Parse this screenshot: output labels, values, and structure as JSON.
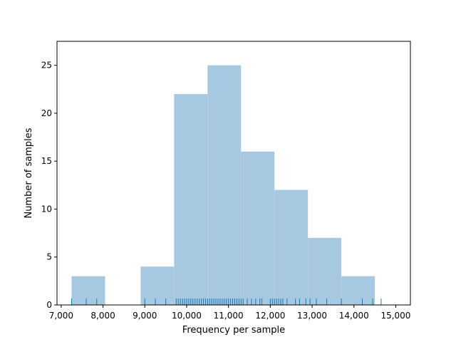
{
  "chart_data": {
    "type": "histogram",
    "title": "",
    "xlabel": "Frequency per sample",
    "ylabel": "Number of samples",
    "xlim": [
      6900,
      15350
    ],
    "ylim": [
      0,
      27.5
    ],
    "x_ticks": [
      7000,
      8000,
      9000,
      10000,
      11000,
      12000,
      13000,
      14000,
      15000
    ],
    "x_tick_labels": [
      "7,000",
      "8,000",
      "9,000",
      "10,000",
      "11,000",
      "12,000",
      "13,000",
      "14,000",
      "15,000"
    ],
    "y_ticks": [
      0,
      5,
      10,
      15,
      20,
      25
    ],
    "y_tick_labels": [
      "0",
      "5",
      "10",
      "15",
      "20",
      "25"
    ],
    "bins": [
      {
        "start": 7250,
        "end": 8050,
        "count": 3
      },
      {
        "start": 8050,
        "end": 8900,
        "count": 0
      },
      {
        "start": 8900,
        "end": 9700,
        "count": 4
      },
      {
        "start": 9700,
        "end": 10500,
        "count": 22
      },
      {
        "start": 10500,
        "end": 11300,
        "count": 25
      },
      {
        "start": 11300,
        "end": 12100,
        "count": 16
      },
      {
        "start": 12100,
        "end": 12900,
        "count": 12
      },
      {
        "start": 12900,
        "end": 13700,
        "count": 7
      },
      {
        "start": 13700,
        "end": 14500,
        "count": 3
      }
    ],
    "rug": [
      7250,
      7600,
      7850,
      9000,
      9250,
      9500,
      9750,
      9800,
      9850,
      9900,
      9950,
      10000,
      10050,
      10100,
      10150,
      10200,
      10250,
      10300,
      10350,
      10400,
      10450,
      10500,
      10550,
      10600,
      10650,
      10700,
      10750,
      10800,
      10850,
      10900,
      10950,
      11000,
      11050,
      11100,
      11150,
      11200,
      11250,
      11300,
      11350,
      11450,
      11550,
      11650,
      11750,
      11800,
      12000,
      12050,
      12100,
      12150,
      12200,
      12250,
      12300,
      12400,
      12600,
      12700,
      12850,
      12950,
      13100,
      13350,
      13700,
      14200,
      14450,
      14650
    ],
    "colors": {
      "bar": "#a6c8e0",
      "rug": "#1f77b4",
      "axis": "#000000"
    }
  }
}
